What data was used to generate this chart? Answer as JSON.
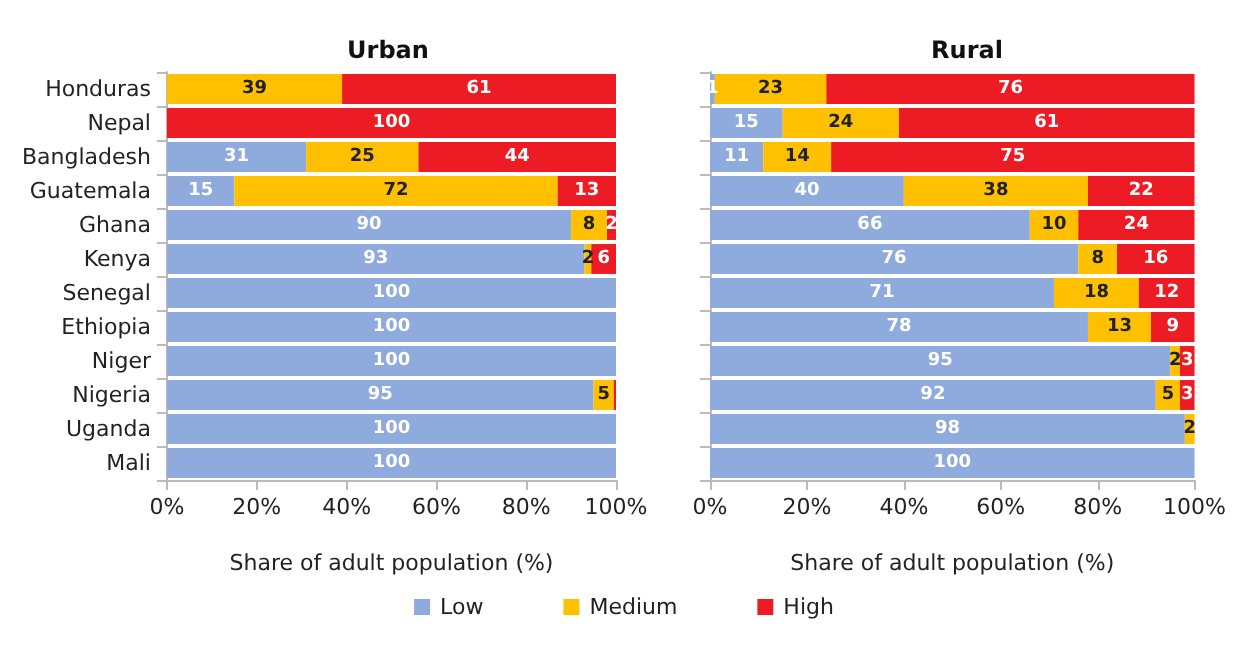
{
  "chart_data": [
    {
      "type": "bar",
      "orientation": "horizontal",
      "stacked": true,
      "title": "Urban",
      "xlabel": "Share of adult population (%)",
      "categories": [
        "Honduras",
        "Nepal",
        "Bangladesh",
        "Guatemala",
        "Ghana",
        "Kenya",
        "Senegal",
        "Ethiopia",
        "Niger",
        "Nigeria",
        "Uganda",
        "Mali"
      ],
      "xlim": [
        0,
        100
      ],
      "xticks": [
        {
          "value": 0,
          "label": "0%"
        },
        {
          "value": 20,
          "label": "20%"
        },
        {
          "value": 40,
          "label": "40%"
        },
        {
          "value": 60,
          "label": "60%"
        },
        {
          "value": 80,
          "label": "80%"
        },
        {
          "value": 100,
          "label": "100%"
        }
      ],
      "legend": "bottom",
      "grid": false,
      "series": [
        {
          "name": "Low",
          "color": "#8faadc",
          "values": [
            0,
            0,
            31,
            15,
            90,
            93,
            100,
            100,
            100,
            95,
            100,
            100
          ],
          "value_labels": [
            null,
            null,
            "31",
            "15",
            "90",
            "93",
            "100",
            "100",
            "100",
            "95",
            "100",
            "100"
          ]
        },
        {
          "name": "Medium",
          "color": "#ffc000",
          "values": [
            39,
            0,
            25,
            72,
            8,
            1.5,
            0,
            0,
            0,
            4.5,
            0,
            0
          ],
          "value_labels": [
            "39",
            null,
            "25",
            "72",
            "8",
            "2",
            null,
            null,
            null,
            "5",
            null,
            null
          ]
        },
        {
          "name": "High",
          "color": "#ed1c24",
          "values": [
            61,
            100,
            44,
            13,
            2,
            5.5,
            0,
            0,
            0,
            0.5,
            0,
            0
          ],
          "value_labels": [
            "61",
            "100",
            "44",
            "13",
            "2",
            "6",
            null,
            null,
            null,
            null,
            null,
            null
          ]
        }
      ]
    },
    {
      "type": "bar",
      "orientation": "horizontal",
      "stacked": true,
      "title": "Rural",
      "xlabel": "Share of adult population (%)",
      "categories": [
        null,
        null,
        null,
        null,
        null,
        null,
        null,
        null,
        null,
        null,
        null,
        null
      ],
      "tick_labels": "x",
      "xlim": [
        0,
        100
      ],
      "xticks": [
        {
          "value": 0,
          "label": "0%"
        },
        {
          "value": 20,
          "label": "20%"
        },
        {
          "value": 40,
          "label": "40%"
        },
        {
          "value": 60,
          "label": "60%"
        },
        {
          "value": 80,
          "label": "80%"
        },
        {
          "value": 100,
          "label": "100%"
        }
      ],
      "grid": false,
      "series": [
        {
          "color": "#8faadc",
          "values": [
            1,
            15,
            11,
            40,
            66,
            76,
            71,
            78,
            95,
            92,
            98,
            100
          ],
          "value_labels": [
            "1",
            "15",
            "11",
            "40",
            "66",
            "76",
            "71",
            "78",
            "95",
            "92",
            "98",
            "100"
          ]
        },
        {
          "color": "#ffc000",
          "values": [
            23,
            24,
            14,
            38,
            10,
            8,
            17.5,
            13,
            2,
            5,
            2,
            0
          ],
          "value_labels": [
            "23",
            "24",
            "14",
            "38",
            "10",
            "8",
            "18",
            "13",
            "2",
            "5",
            "2",
            null
          ]
        },
        {
          "color": "#ed1c24",
          "values": [
            76,
            61,
            75,
            22,
            24,
            16,
            11.5,
            9,
            3,
            3,
            0,
            0
          ],
          "value_labels": [
            "76",
            "61",
            "75",
            "22",
            "24",
            "16",
            "12",
            "9",
            "3",
            "3",
            null,
            null
          ]
        }
      ]
    }
  ]
}
